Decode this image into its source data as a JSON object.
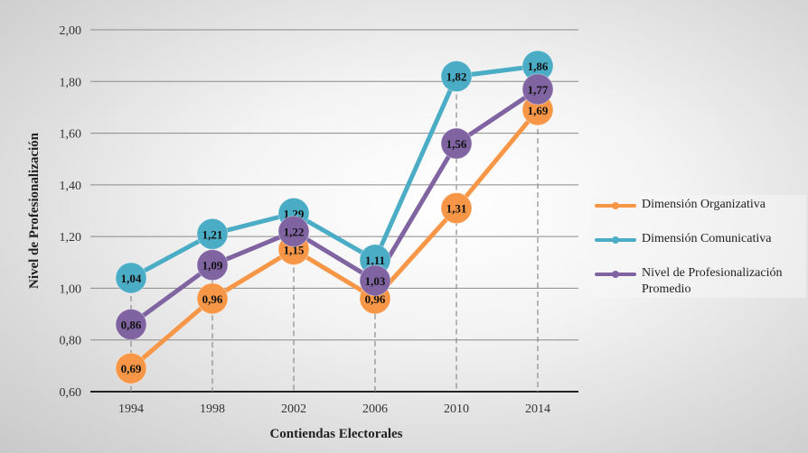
{
  "chart_data": {
    "type": "line",
    "title": "",
    "xlabel": "Contiendas Electorales",
    "ylabel": "Nivel de Profesionalización",
    "categories": [
      "1994",
      "1998",
      "2002",
      "2006",
      "2010",
      "2014"
    ],
    "ylim": [
      0.6,
      2.0
    ],
    "yticks": [
      "0,60",
      "0,80",
      "1,00",
      "1,20",
      "1,40",
      "1,60",
      "1,80",
      "2,00"
    ],
    "grid": true,
    "legend_position": "right",
    "series": [
      {
        "name": "Dimensión Organizativa",
        "color": "#f79646",
        "values": [
          0.69,
          0.96,
          1.15,
          0.96,
          1.31,
          1.69
        ],
        "labels": [
          "0,69",
          "0,96",
          "1,15",
          "0,96",
          "1,31",
          "1,69"
        ]
      },
      {
        "name": "Dimensión Comunicativa",
        "color": "#4bacc6",
        "values": [
          1.04,
          1.21,
          1.29,
          1.11,
          1.82,
          1.86
        ],
        "labels": [
          "1,04",
          "1,21",
          "1,29",
          "1,11",
          "1,82",
          "1,86"
        ]
      },
      {
        "name": "Nivel de Profesionalización Promedio",
        "color": "#8064a2",
        "values": [
          0.86,
          1.09,
          1.22,
          1.03,
          1.56,
          1.77
        ],
        "labels": [
          "0,86",
          "1,09",
          "1,22",
          "1,03",
          "1,56",
          "1,77"
        ]
      }
    ]
  }
}
